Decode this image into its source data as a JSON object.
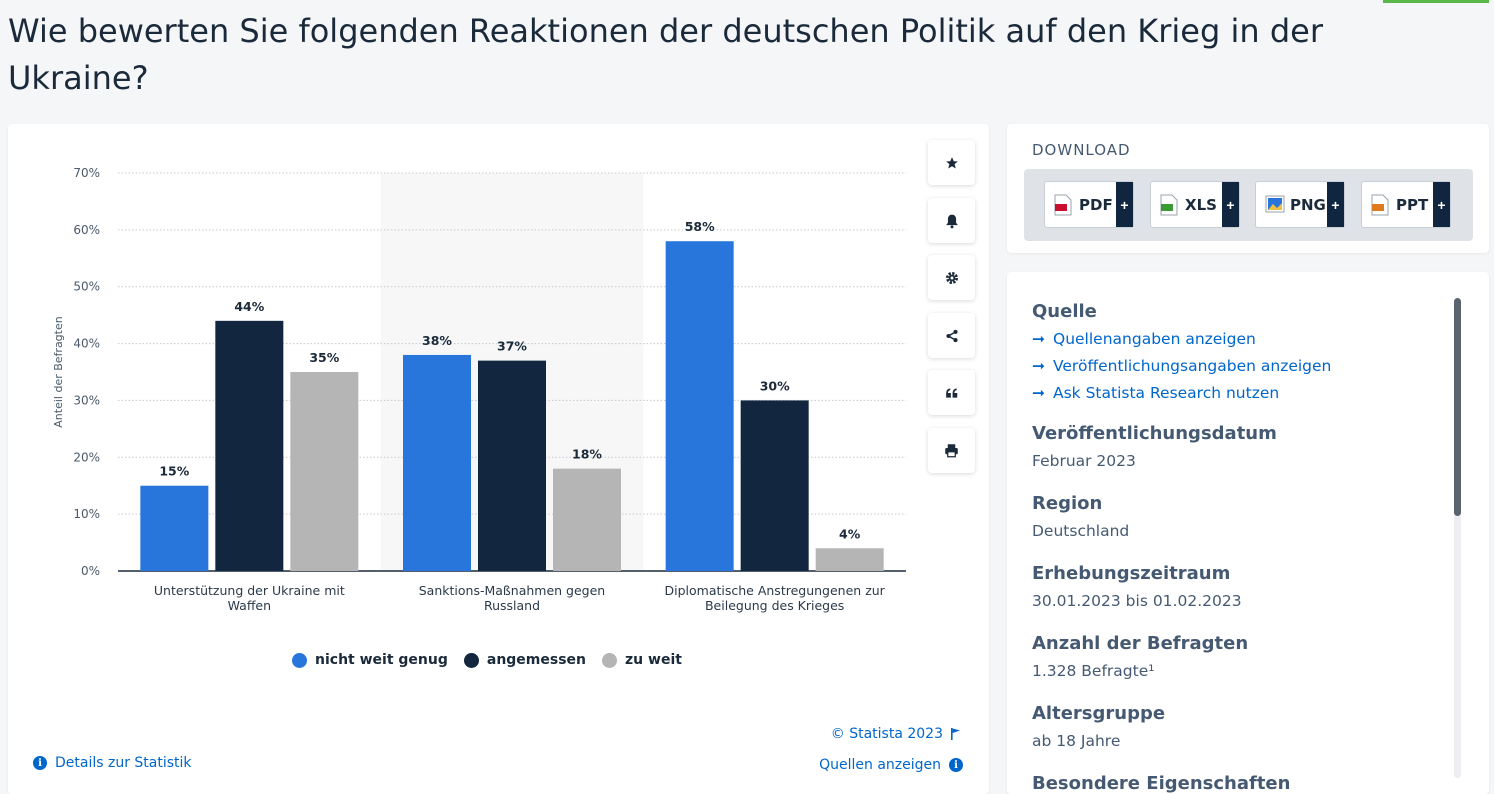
{
  "page": {
    "title": "Wie bewerten Sie folgenden Reaktionen der deutschen Politik auf den Krieg in der Ukraine?"
  },
  "chart_data": {
    "type": "bar",
    "title": "Wie bewerten Sie folgenden Reaktionen der deutschen Politik auf den Krieg in der Ukraine?",
    "xlabel": "",
    "ylabel": "Anteil der Befragten",
    "ylim": [
      0,
      70
    ],
    "yticks": [
      "0%",
      "10%",
      "20%",
      "30%",
      "40%",
      "50%",
      "60%",
      "70%"
    ],
    "categories": [
      [
        "Unterstützung der Ukraine mit",
        "Waffen"
      ],
      [
        "Sanktions-Maßnahmen gegen",
        "Russland"
      ],
      [
        "Diplomatische Anstregungenen zur",
        "Beilegung des Krieges"
      ]
    ],
    "series": [
      {
        "name": "nicht weit genug",
        "color": "#2875dc",
        "values": [
          15,
          38,
          58
        ]
      },
      {
        "name": "angemessen",
        "color": "#12263f",
        "values": [
          44,
          37,
          30
        ]
      },
      {
        "name": "zu weit",
        "color": "#b5b5b5",
        "values": [
          35,
          18,
          4
        ]
      }
    ],
    "value_suffix": "%",
    "grid": true,
    "highlighted_category": 1,
    "legend_position": "bottom-center"
  },
  "legend": {
    "items": [
      {
        "label": "nicht weit genug",
        "color": "#2875dc"
      },
      {
        "label": "angemessen",
        "color": "#12263f"
      },
      {
        "label": "zu weit",
        "color": "#b5b5b5"
      }
    ]
  },
  "chart_footer": {
    "copyright": "© Statista 2023",
    "details_link": "Details zur Statistik",
    "sources_link": "Quellen anzeigen"
  },
  "toolbar": {
    "buttons": [
      "star-icon",
      "bell-icon",
      "gear-icon",
      "share-icon",
      "quote-icon",
      "print-icon"
    ]
  },
  "download": {
    "title": "DOWNLOAD",
    "buttons": [
      {
        "label": "PDF",
        "icon": "pdf-file-icon",
        "color": "#c8102e"
      },
      {
        "label": "XLS",
        "icon": "xls-file-icon",
        "color": "#3c9a34"
      },
      {
        "label": "PNG",
        "icon": "png-file-icon",
        "color": "#2875dc"
      },
      {
        "label": "PPT",
        "icon": "ppt-file-icon",
        "color": "#e07a1f"
      }
    ],
    "plus": "+"
  },
  "info": {
    "source_heading": "Quelle",
    "source_links": [
      "Quellenangaben anzeigen",
      "Veröffentlichungsangaben anzeigen",
      "Ask Statista Research nutzen"
    ],
    "arrow": "➞",
    "sections": [
      {
        "heading": "Veröffentlichungsdatum",
        "value": "Februar 2023"
      },
      {
        "heading": "Region",
        "value": "Deutschland"
      },
      {
        "heading": "Erhebungszeitraum",
        "value": "30.01.2023 bis 01.02.2023"
      },
      {
        "heading": "Anzahl der Befragten",
        "value": "1.328 Befragte¹"
      },
      {
        "heading": "Altersgruppe",
        "value": "ab 18 Jahre"
      }
    ],
    "partial_heading": "Besondere Eigenschaften"
  }
}
